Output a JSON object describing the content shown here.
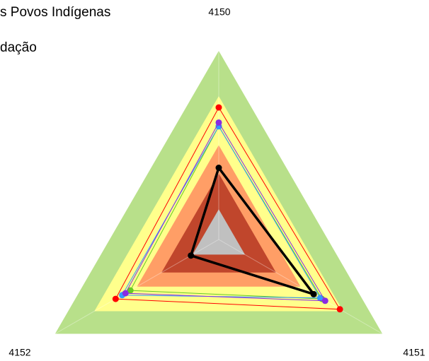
{
  "chart_data": {
    "type": "radar",
    "title": "s Povos Indígenas",
    "subtitle": "dação",
    "categories": [
      "4150",
      "4151",
      "4152"
    ],
    "rlim": [
      0,
      100
    ],
    "series": [
      {
        "color": "#b8e08a",
        "fill": true,
        "values": [
          100,
          100,
          100
        ]
      },
      {
        "color": "#ffff8c",
        "fill": true,
        "values": [
          76,
          76,
          76
        ]
      },
      {
        "color": "#ff9e66",
        "fill": true,
        "values": [
          50,
          50,
          50
        ]
      },
      {
        "color": "#c0462c",
        "fill": true,
        "values": [
          35,
          35,
          35
        ]
      },
      {
        "color": "#c0c0c0",
        "fill": true,
        "values": [
          16,
          16,
          16
        ]
      },
      {
        "color": "#ff0000",
        "fill": false,
        "values": [
          70,
          74,
          63
        ]
      },
      {
        "color": "#66cc22",
        "fill": false,
        "values": [
          60,
          63,
          54
        ]
      },
      {
        "color": "#3399ff",
        "fill": false,
        "values": [
          60,
          62,
          59
        ]
      },
      {
        "color": "#8a2be2",
        "fill": false,
        "values": [
          62,
          65,
          57
        ]
      },
      {
        "color": "#000000",
        "fill": false,
        "values": [
          38,
          58,
          17
        ]
      }
    ]
  }
}
